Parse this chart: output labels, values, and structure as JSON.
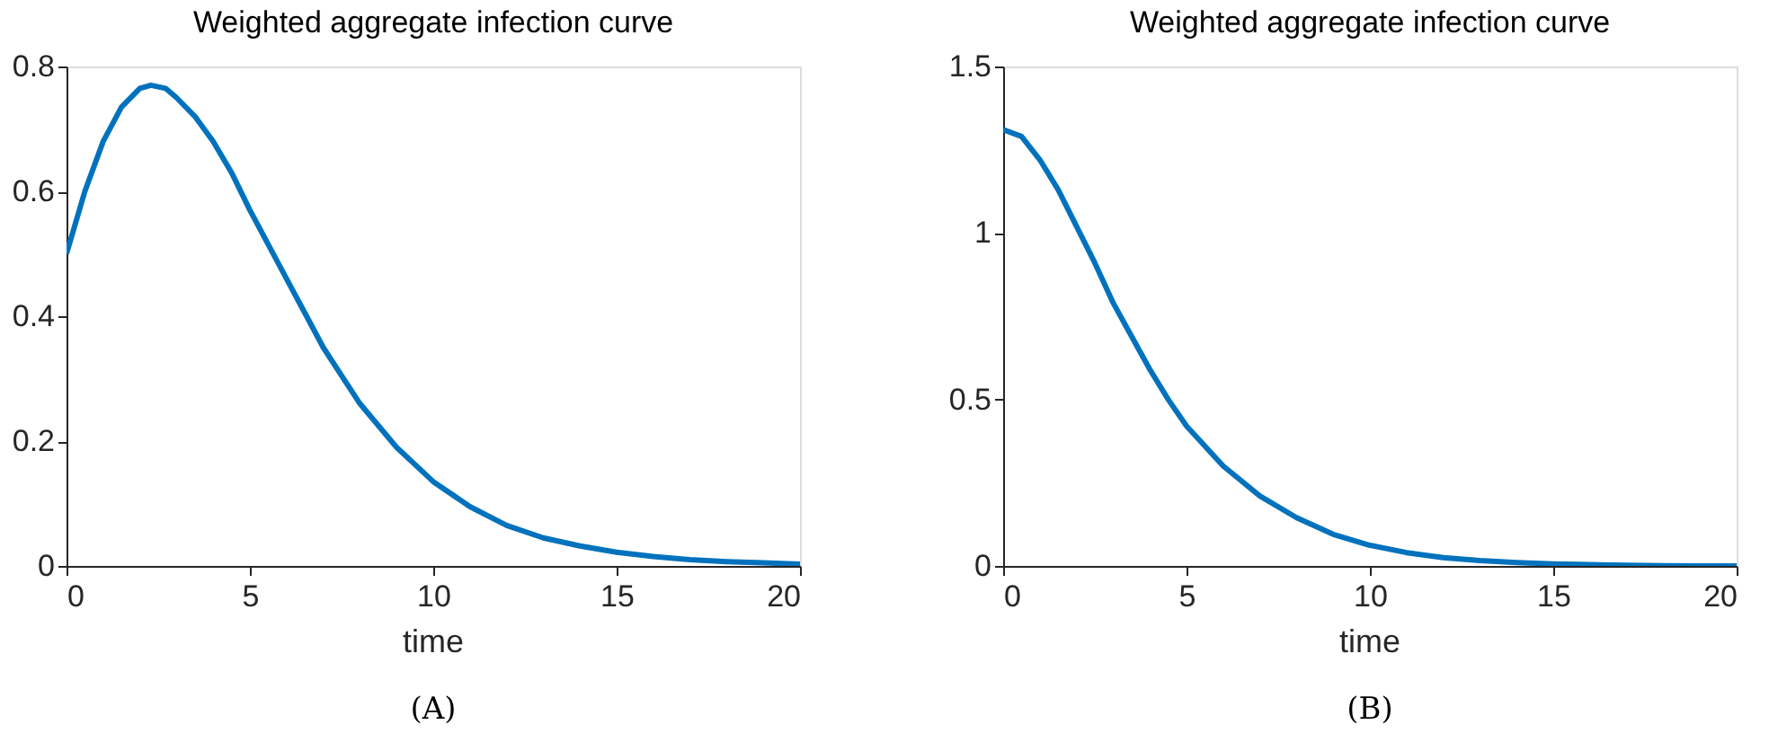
{
  "chart_data": [
    {
      "type": "line",
      "title": "Weighted aggregate infection curve",
      "xlabel": "time",
      "annotations": [
        "(A)"
      ],
      "grid": false,
      "xlim": [
        0,
        20
      ],
      "xticks": [
        0,
        5,
        10,
        15,
        20
      ],
      "ylim": [
        0,
        0.8
      ],
      "yticks": [
        0,
        0.2,
        0.4,
        0.6,
        0.8
      ],
      "x": [
        0,
        0.5,
        1,
        1.5,
        2,
        2.3,
        2.7,
        3,
        3.5,
        4,
        4.5,
        5,
        5.5,
        6,
        6.5,
        7,
        7.5,
        8,
        9,
        10,
        11,
        12,
        13,
        14,
        15,
        16,
        17,
        18,
        19,
        20
      ],
      "series": [
        {
          "color": "#0072bd",
          "values": [
            0.5,
            0.6,
            0.68,
            0.735,
            0.765,
            0.77,
            0.765,
            0.75,
            0.72,
            0.68,
            0.63,
            0.57,
            0.515,
            0.46,
            0.405,
            0.35,
            0.305,
            0.26,
            0.19,
            0.135,
            0.095,
            0.065,
            0.045,
            0.032,
            0.022,
            0.015,
            0.01,
            0.007,
            0.005,
            0.003
          ]
        }
      ]
    },
    {
      "type": "line",
      "title": "Weighted aggregate infection curve",
      "xlabel": "time",
      "annotations": [
        "(B)"
      ],
      "grid": false,
      "xlim": [
        0,
        20
      ],
      "xticks": [
        0,
        5,
        10,
        15,
        20
      ],
      "ylim": [
        0,
        1.5
      ],
      "yticks": [
        0,
        0.5,
        1,
        1.5
      ],
      "x": [
        0,
        0.5,
        1,
        1.5,
        2,
        2.5,
        3,
        3.5,
        4,
        4.5,
        5,
        5.5,
        6,
        7,
        8,
        9,
        10,
        11,
        12,
        13,
        14,
        15,
        16,
        17,
        18,
        19,
        20
      ],
      "series": [
        {
          "color": "#0072bd",
          "values": [
            1.31,
            1.29,
            1.22,
            1.13,
            1.02,
            0.91,
            0.79,
            0.69,
            0.59,
            0.5,
            0.42,
            0.36,
            0.3,
            0.21,
            0.145,
            0.095,
            0.062,
            0.04,
            0.025,
            0.016,
            0.01,
            0.006,
            0.004,
            0.002,
            0.001,
            0,
            0
          ]
        }
      ]
    }
  ]
}
